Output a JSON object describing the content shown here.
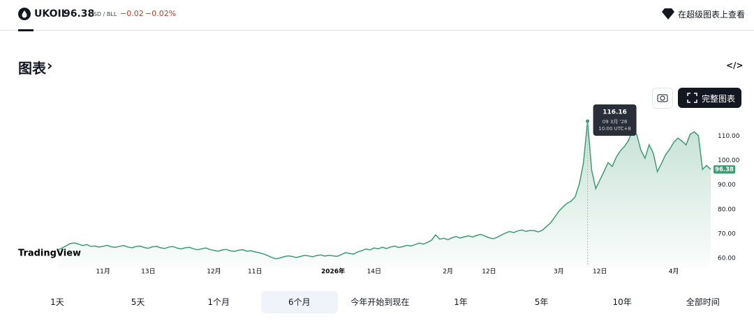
{
  "header": {
    "symbol": "UKOIL",
    "price": "96.38",
    "unit": "USD / BLL",
    "change": "−0.02",
    "change_pct": "−0.02%",
    "open_link": "在超级图表上查看"
  },
  "section": {
    "title": "图表",
    "full_chart": "完整图表"
  },
  "chart": {
    "type": "line",
    "logo": "TradingView",
    "color": "#3d9a74",
    "ylim": [
      56,
      123
    ],
    "yticks": [
      {
        "value": 60,
        "label": "60.00"
      },
      {
        "value": 70,
        "label": "70.00"
      },
      {
        "value": 80,
        "label": "80.00"
      },
      {
        "value": 90,
        "label": "90.00"
      },
      {
        "value": 100,
        "label": "100.00"
      },
      {
        "value": 110,
        "label": "110.00"
      }
    ],
    "xticks": [
      {
        "value": 11,
        "label": "11月"
      },
      {
        "value": 22,
        "label": "13日"
      },
      {
        "value": 38,
        "label": "12月"
      },
      {
        "value": 48,
        "label": "11日"
      },
      {
        "value": 67,
        "label": "2026年"
      },
      {
        "value": 77,
        "label": "14日"
      },
      {
        "value": 95,
        "label": "2月"
      },
      {
        "value": 105,
        "label": "12日"
      },
      {
        "value": 122,
        "label": "3月"
      },
      {
        "value": 132,
        "label": "12日"
      },
      {
        "value": 150,
        "label": "4月"
      }
    ],
    "tooltip": {
      "date": "09 3月 '26",
      "time": "10:00 UTC+8"
    },
    "values": [
      63.4,
      64.2,
      65.1,
      66.0,
      66.3,
      65.8,
      65.2,
      65.6,
      64.9,
      65.0,
      64.6,
      64.9,
      65.3,
      64.7,
      64.5,
      64.9,
      65.2,
      64.6,
      64.3,
      64.8,
      65.0,
      64.4,
      64.1,
      64.7,
      64.9,
      64.3,
      64.0,
      64.6,
      64.8,
      64.2,
      63.8,
      64.3,
      64.5,
      63.9,
      63.5,
      63.9,
      64.2,
      63.6,
      63.2,
      62.9,
      63.4,
      63.6,
      63.0,
      62.8,
      63.3,
      63.5,
      62.9,
      63.1,
      62.6,
      62.3,
      61.8,
      61.2,
      60.4,
      59.8,
      60.1,
      60.6,
      61.0,
      60.8,
      60.3,
      60.7,
      61.2,
      61.0,
      60.6,
      61.1,
      61.4,
      60.9,
      61.2,
      61.0,
      60.8,
      61.5,
      62.3,
      62.0,
      61.7,
      62.6,
      63.1,
      63.8,
      63.4,
      64.2,
      63.9,
      64.5,
      64.0,
      64.6,
      65.0,
      64.4,
      64.8,
      65.3,
      65.0,
      65.6,
      66.2,
      65.8,
      66.5,
      67.4,
      69.6,
      67.8,
      68.2,
      67.6,
      68.4,
      68.9,
      68.3,
      68.8,
      69.2,
      68.7,
      69.4,
      69.8,
      69.1,
      68.4,
      68.0,
      68.6,
      69.5,
      70.3,
      71.0,
      70.5,
      71.2,
      71.6,
      71.0,
      71.4,
      71.3,
      70.8,
      71.5,
      73.0,
      74.5,
      76.8,
      79.2,
      81.0,
      82.5,
      83.4,
      85.2,
      90.4,
      99.0,
      116.16,
      96.0,
      88.5,
      92.0,
      95.5,
      99.2,
      97.6,
      101.4,
      104.0,
      105.8,
      108.3,
      113.0,
      110.5,
      104.2,
      101.0,
      106.5,
      103.0,
      95.5,
      98.8,
      102.4,
      104.6,
      107.5,
      109.2,
      108.0,
      106.4,
      110.8,
      111.8,
      110.2,
      96.4,
      98.0,
      96.38
    ]
  },
  "ranges": {
    "items": [
      "1天",
      "5天",
      "1个月",
      "6个月",
      "今年开始到现在",
      "1年",
      "5年",
      "10年",
      "全部时间"
    ],
    "selected": "6个月"
  }
}
